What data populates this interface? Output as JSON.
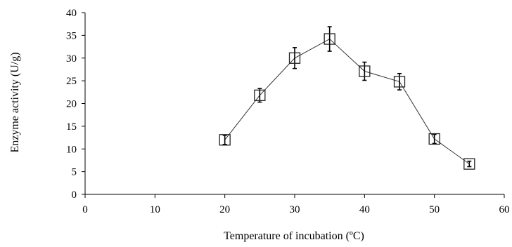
{
  "chart_data": {
    "type": "line",
    "xlabel": "Temperature of incubation (ºC)",
    "ylabel": "Enzyme activity (U/g)",
    "xlim": [
      0,
      60
    ],
    "ylim": [
      0,
      40
    ],
    "xticks": [
      0,
      10,
      20,
      30,
      40,
      50,
      60
    ],
    "yticks": [
      0,
      5,
      10,
      15,
      20,
      25,
      30,
      35,
      40
    ],
    "grid": false,
    "marker": "open-square",
    "series": [
      {
        "x": [
          20,
          25,
          30,
          35,
          40,
          45,
          50,
          55
        ],
        "y": [
          12.0,
          21.8,
          30.0,
          34.2,
          27.1,
          24.8,
          12.2,
          6.7
        ],
        "error": [
          1.0,
          1.5,
          2.3,
          2.7,
          2.0,
          1.8,
          1.0,
          0.6
        ]
      }
    ]
  }
}
